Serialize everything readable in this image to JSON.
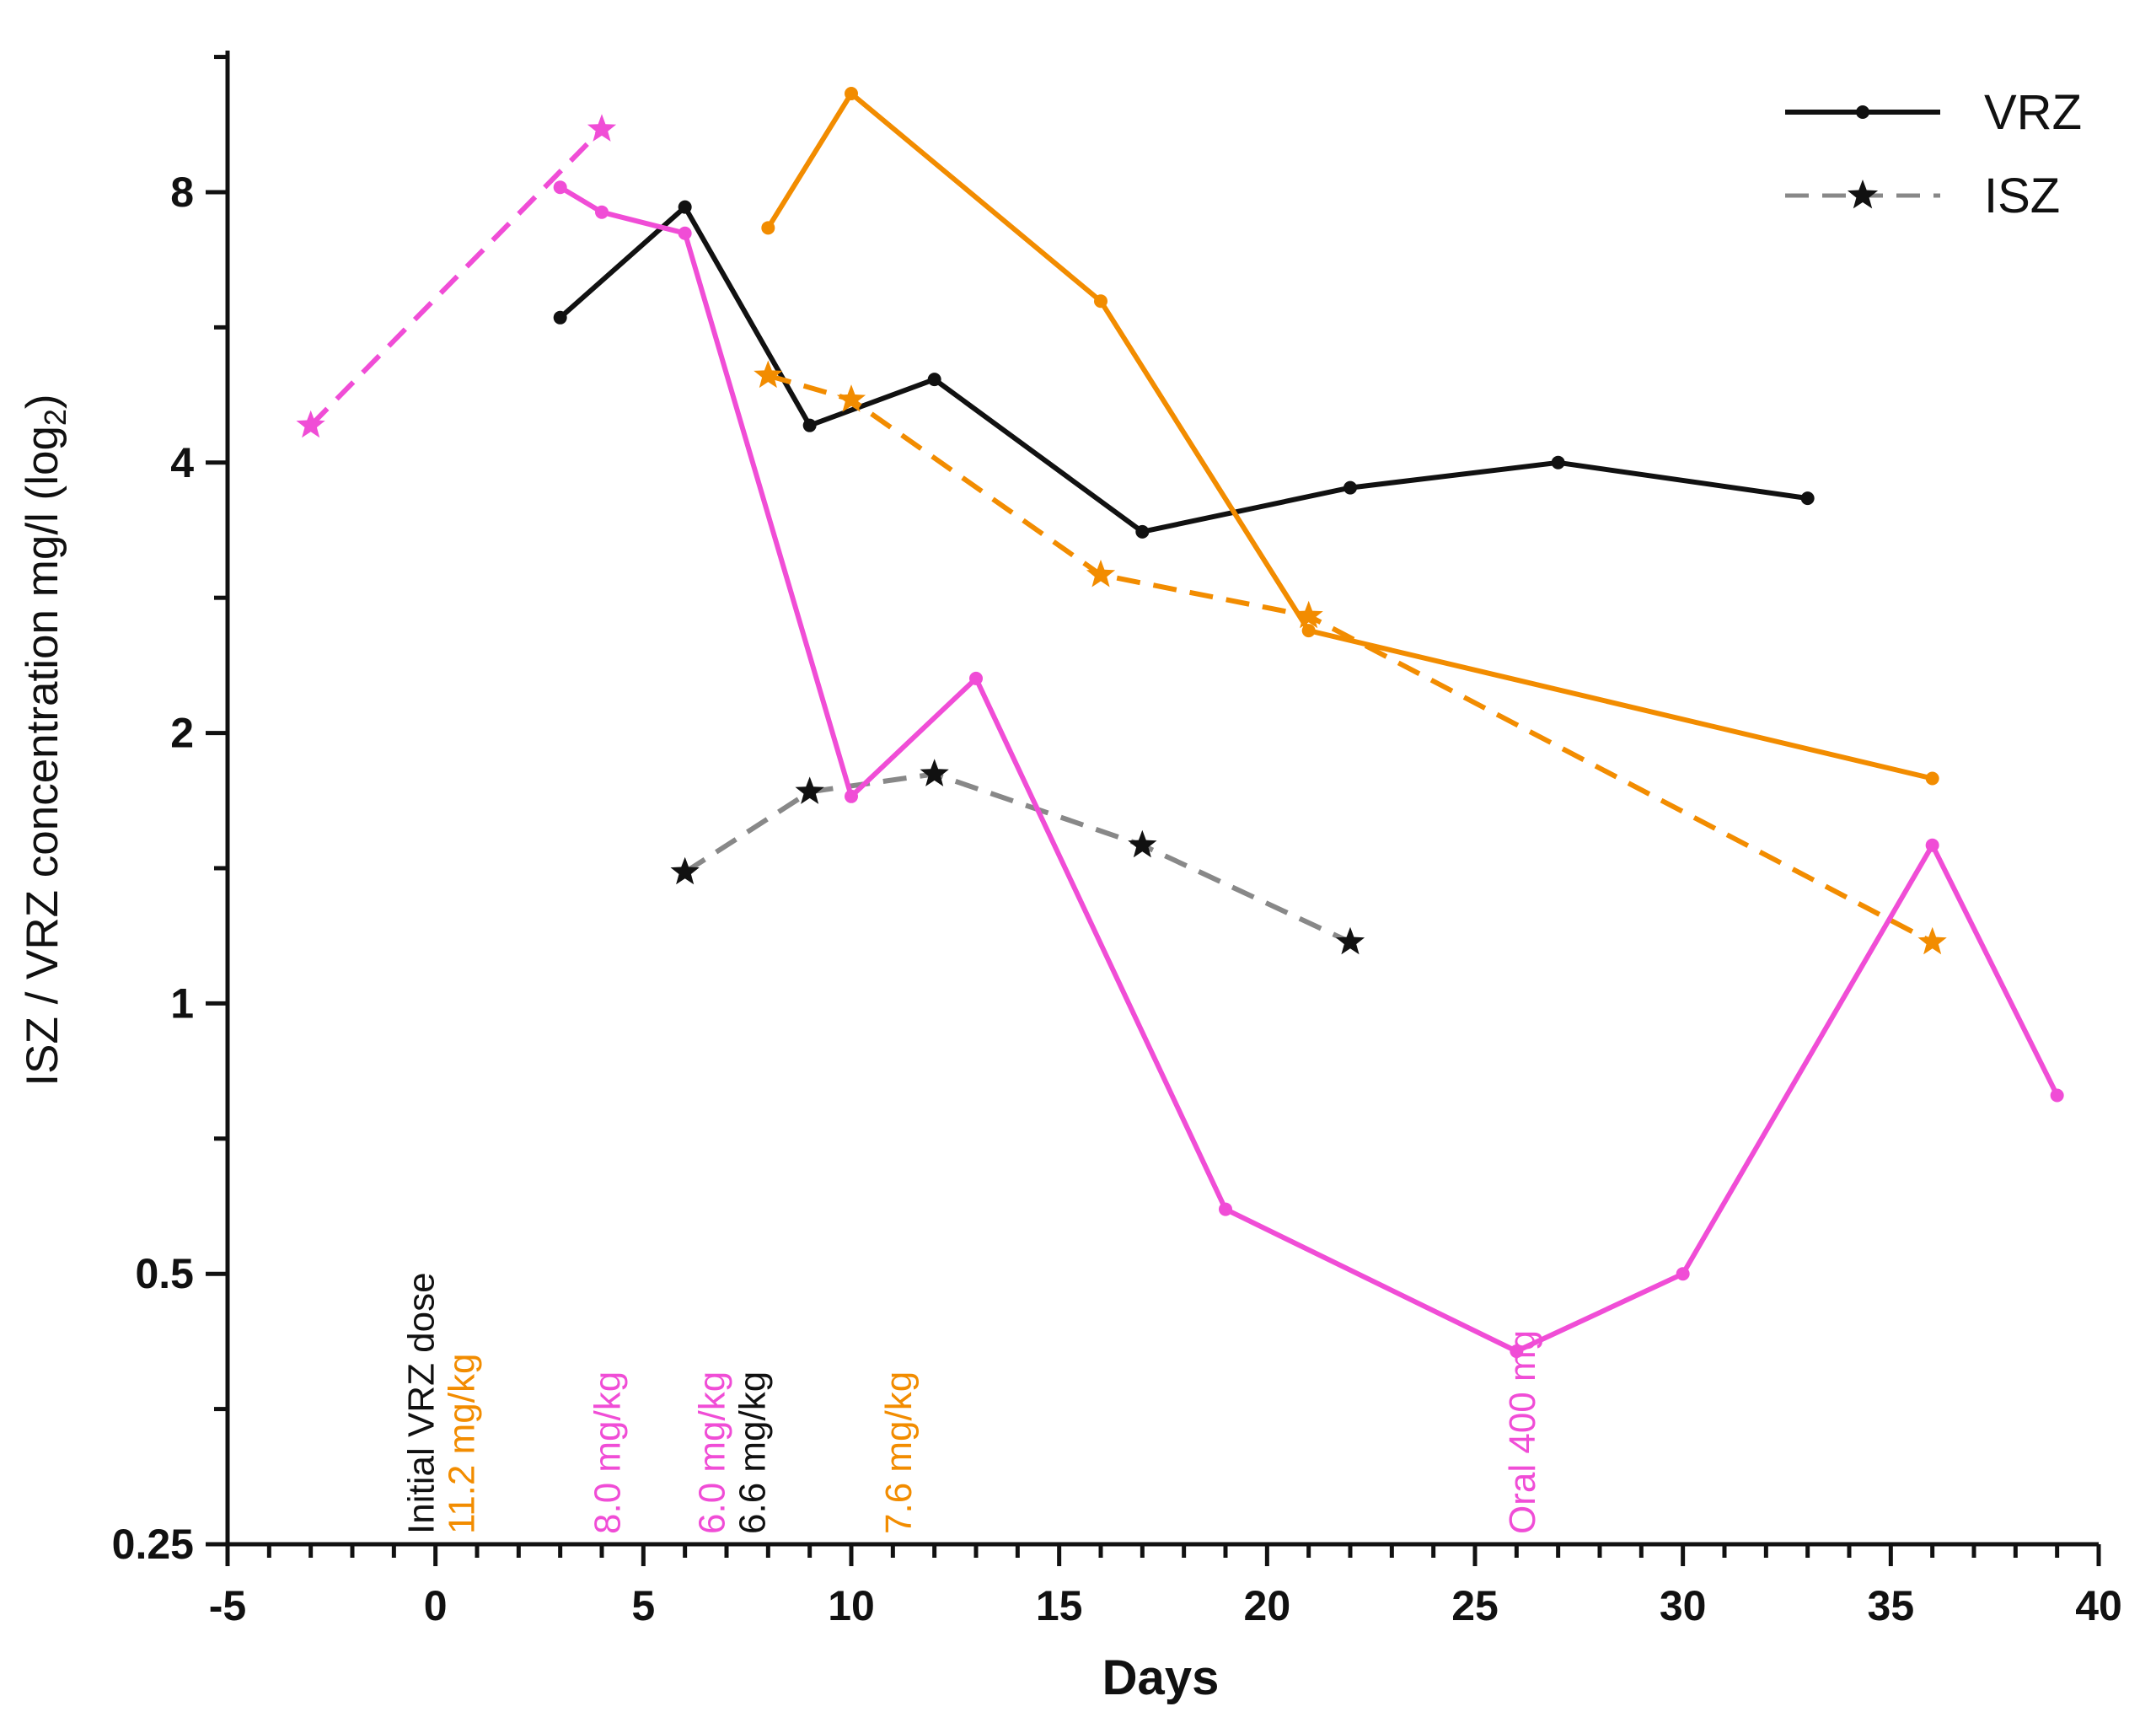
{
  "chart_data": {
    "type": "line",
    "title": "",
    "xlabel": "Days",
    "ylabel_main": "ISZ / VRZ concentration mg/l (log",
    "ylabel_sub": "2",
    "ylabel_close": ")",
    "yscale": "log2",
    "xlim": [
      -5,
      40
    ],
    "ylim": [
      0.25,
      11.5
    ],
    "x_ticks": [
      -5,
      0,
      5,
      10,
      15,
      20,
      25,
      30,
      35,
      40
    ],
    "x_tick_labels": [
      "-5",
      "0",
      "5",
      "10",
      "15",
      "20",
      "25",
      "30",
      "35",
      "40"
    ],
    "y_ticks": [
      0.25,
      0.5,
      1,
      2,
      4,
      8
    ],
    "y_tick_labels": [
      "0.25",
      "0.5",
      "1",
      "2",
      "4",
      "8"
    ],
    "legend": [
      {
        "label": "VRZ",
        "style": "solid",
        "marker": "dot",
        "color": "#111111"
      },
      {
        "label": "ISZ",
        "style": "dashed",
        "marker": "star",
        "color": "#888888",
        "marker_color": "#111111"
      }
    ],
    "series": [
      {
        "name": "VRZ patient 1",
        "drug": "VRZ",
        "color": "#111111",
        "style": "solid",
        "marker": "dot",
        "x": [
          3,
          6,
          9,
          12,
          17,
          22,
          27,
          33
        ],
        "y": [
          5.8,
          7.7,
          4.4,
          4.95,
          3.35,
          3.75,
          4.0,
          3.65
        ]
      },
      {
        "name": "ISZ patient 1",
        "drug": "ISZ",
        "color": "#888888",
        "marker_color": "#111111",
        "style": "dashed",
        "marker": "star",
        "x": [
          6,
          9,
          12,
          17,
          22
        ],
        "y": [
          1.4,
          1.72,
          1.8,
          1.5,
          1.17
        ]
      },
      {
        "name": "VRZ patient 2",
        "drug": "VRZ",
        "color": "#F28C00",
        "style": "solid",
        "marker": "dot",
        "x": [
          8,
          10,
          16,
          21,
          36
        ],
        "y": [
          7.3,
          10.3,
          6.05,
          2.6,
          1.78
        ]
      },
      {
        "name": "ISZ patient 2",
        "drug": "ISZ",
        "color": "#F28C00",
        "style": "dashed",
        "marker": "star",
        "x": [
          8,
          10,
          16,
          21,
          36
        ],
        "y": [
          5.0,
          4.7,
          3.0,
          2.7,
          1.17
        ]
      },
      {
        "name": "VRZ patient 3",
        "drug": "VRZ",
        "color": "#F04DD6",
        "style": "solid",
        "marker": "dot",
        "x": [
          3,
          4,
          6,
          10,
          13,
          19,
          26,
          30,
          36,
          39
        ],
        "y": [
          8.1,
          7.6,
          7.2,
          1.7,
          2.3,
          0.59,
          0.41,
          0.5,
          1.5,
          0.79
        ]
      },
      {
        "name": "ISZ patient 3",
        "drug": "ISZ",
        "color": "#F04DD6",
        "style": "dashed",
        "marker": "star",
        "x": [
          -3,
          4
        ],
        "y": [
          4.4,
          9.4
        ]
      }
    ],
    "annotations": [
      {
        "lines": [
          {
            "text": "Initial VRZ dose",
            "color": "#111111"
          },
          {
            "text": "11.2 mg/kg",
            "color": "#F28C00"
          }
        ],
        "x": 0
      },
      {
        "lines": [
          {
            "text": "8.0 mg/kg",
            "color": "#F04DD6"
          }
        ],
        "x": 4
      },
      {
        "lines": [
          {
            "text": "6.0 mg/kg",
            "color": "#F04DD6"
          },
          {
            "text": "6.6 mg/kg",
            "color": "#111111"
          }
        ],
        "x": 7
      },
      {
        "lines": [
          {
            "text": "7.6 mg/kg",
            "color": "#F28C00"
          }
        ],
        "x": 11
      },
      {
        "lines": [
          {
            "text": "Oral 400 mg",
            "color": "#F04DD6"
          }
        ],
        "x": 26
      }
    ]
  }
}
